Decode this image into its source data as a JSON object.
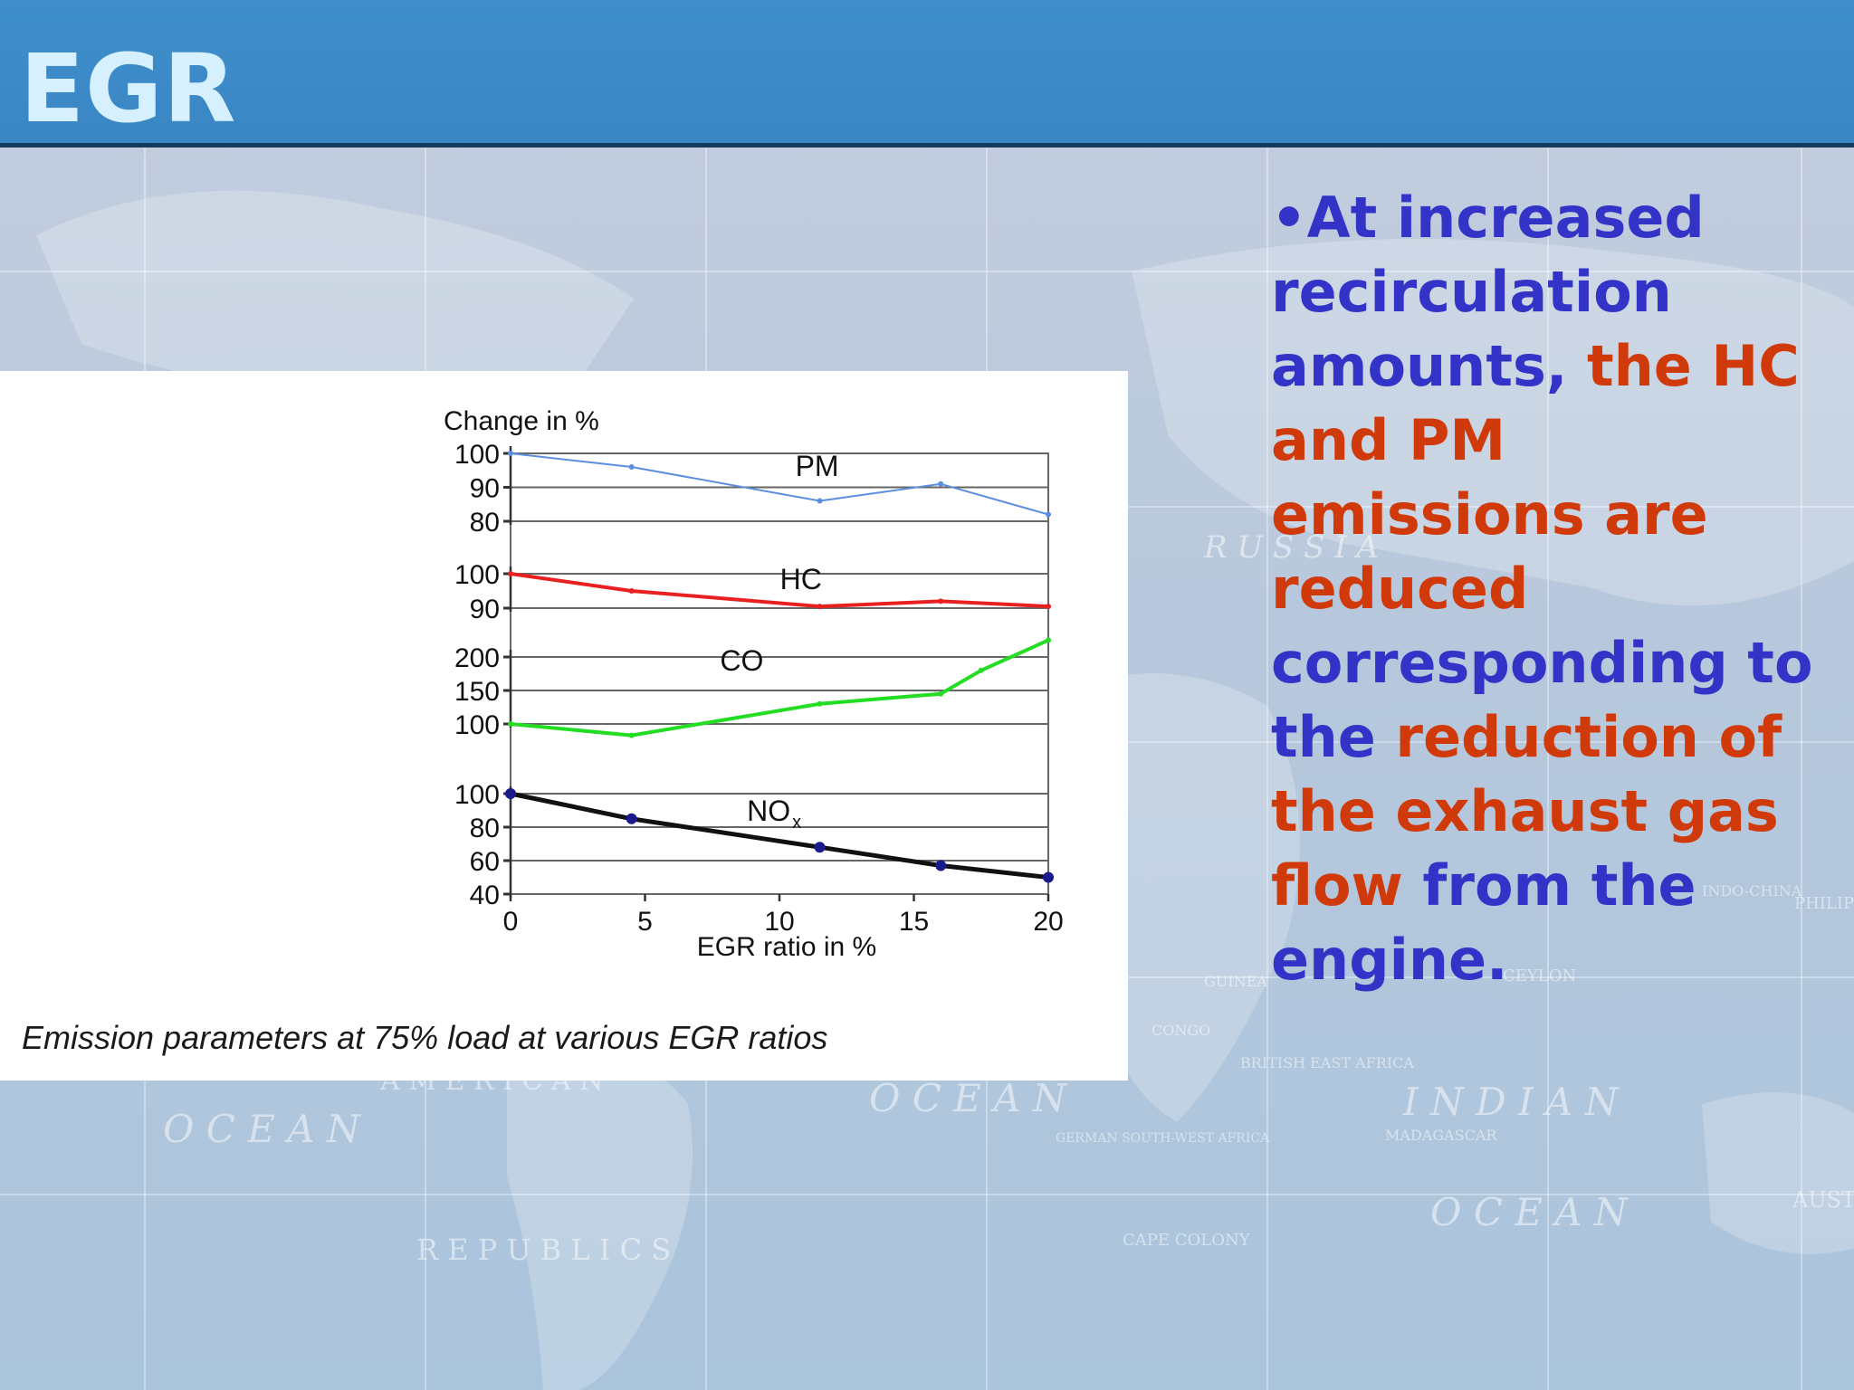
{
  "slide": {
    "title": "EGR",
    "caption": "Emission parameters at 75% load at various EGR ratios",
    "bullet": [
      {
        "text": "•At increased recirculation amounts, ",
        "color": "blue"
      },
      {
        "text": "the HC and PM emissions are reduced",
        "color": "red"
      },
      {
        "text": " corresponding to the ",
        "color": "blue"
      },
      {
        "text": "reduction of the exhaust gas flow",
        "color": "red"
      },
      {
        "text": " from the engine.",
        "color": "blue"
      }
    ]
  },
  "background": {
    "map_labels": [
      "R U S S I A",
      "O C E A N",
      "O C E A N",
      "I N D I A N",
      "O C E A N",
      "R E P U B L I C S",
      "A M E R I C A N",
      "AUSTR",
      "PHILIP",
      "INDO-CHINA",
      "CEYLON",
      "GERMAN SOUTH-WEST AFRICA",
      "CAPE COLONY",
      "MADAGASCAR",
      "BRITISH EAST AFRICA",
      "CONGO",
      "GUINEA"
    ]
  },
  "colors": {
    "header": "#3a86c4",
    "title": "#d6f0ff",
    "text_blue": "#3333c8",
    "text_red": "#d03a0a",
    "pm": "#5b8ee0",
    "hc": "#e82020",
    "co": "#22dd22",
    "nox": "#111111",
    "nox_markers": "#1a1a8c"
  },
  "chart_data": {
    "type": "line",
    "ylabel": "Change in %",
    "xlabel": "EGR ratio in %",
    "x_ticks": [
      0,
      5,
      10,
      15,
      20
    ],
    "x_tick_labels": [
      "0",
      "5",
      "10",
      "15",
      "20"
    ],
    "xlim": [
      0,
      20
    ],
    "grid": true,
    "panels": [
      {
        "name": "PM",
        "label": "PM",
        "ylim": [
          80,
          100
        ],
        "y_ticks": [
          100,
          90,
          80
        ],
        "y_tick_labels": [
          "100",
          "90",
          "80"
        ],
        "x": [
          0,
          4.5,
          11.5,
          16,
          20
        ],
        "y": [
          100,
          96,
          86,
          91,
          82
        ]
      },
      {
        "name": "HC",
        "label": "HC",
        "ylim": [
          90,
          100
        ],
        "y_ticks": [
          100,
          90
        ],
        "y_tick_labels": [
          "100",
          "90"
        ],
        "x": [
          0,
          4.5,
          11.5,
          16,
          20
        ],
        "y": [
          100,
          95,
          90.5,
          92,
          90.5
        ]
      },
      {
        "name": "CO",
        "label": "CO",
        "ylim": [
          100,
          200
        ],
        "y_ticks": [
          200,
          150,
          100
        ],
        "y_tick_labels": [
          "200",
          "150",
          "100"
        ],
        "x": [
          0,
          4.5,
          11.5,
          16,
          17.5,
          20
        ],
        "y": [
          100,
          83,
          130,
          145,
          180,
          225
        ]
      },
      {
        "name": "NOx",
        "label": "NO",
        "label_sub": "x",
        "ylim": [
          40,
          100
        ],
        "y_ticks": [
          100,
          80,
          60,
          40
        ],
        "y_tick_labels": [
          "100",
          "80",
          "60",
          "40"
        ],
        "x": [
          0,
          4.5,
          11.5,
          16,
          20
        ],
        "y": [
          100,
          85,
          68,
          57,
          50
        ]
      }
    ]
  }
}
